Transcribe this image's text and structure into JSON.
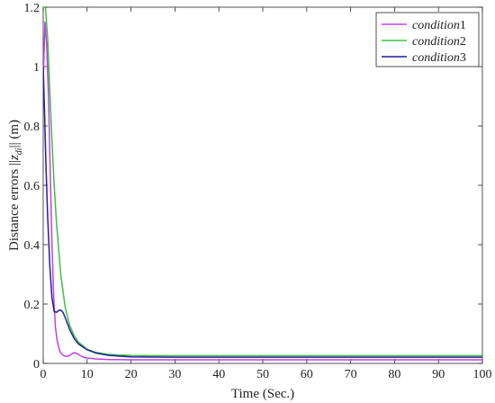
{
  "chart_data": {
    "type": "line",
    "xlabel": "Time (Sec.)",
    "ylabel": "Distance errors ‖z_di‖ (m)",
    "ylabel_parts": {
      "pre": "Distance errors ",
      "norm_open": "||",
      "var": "z",
      "sub": "di",
      "norm_close": "||",
      "post": " (m)"
    },
    "xlim": [
      0,
      100
    ],
    "ylim": [
      0,
      1.2
    ],
    "x_ticks": [
      0,
      10,
      20,
      30,
      40,
      50,
      60,
      70,
      80,
      90,
      100
    ],
    "y_ticks": [
      0,
      0.2,
      0.4,
      0.6,
      0.8,
      1,
      1.2
    ],
    "x_tick_labels": [
      "0",
      "10",
      "20",
      "30",
      "40",
      "50",
      "60",
      "70",
      "80",
      "90",
      "100"
    ],
    "y_tick_labels": [
      "0",
      "0.2",
      "0.4",
      "0.6",
      "0.8",
      "1",
      "1.2"
    ],
    "grid": false,
    "legend_position": "top-right",
    "series": [
      {
        "name": "condition1",
        "name_italic": "condition",
        "name_num": "1",
        "color": "#bf40e6",
        "x": [
          0,
          0.4,
          0.8,
          1.2,
          1.6,
          2.0,
          2.4,
          2.8,
          3.2,
          3.6,
          4.0,
          4.5,
          5.0,
          5.5,
          6.0,
          6.5,
          7.0,
          7.5,
          8.0,
          9.0,
          10,
          12,
          15,
          20,
          30,
          50,
          100
        ],
        "y": [
          0.95,
          1.15,
          1.07,
          0.9,
          0.65,
          0.4,
          0.22,
          0.12,
          0.075,
          0.05,
          0.035,
          0.028,
          0.024,
          0.024,
          0.027,
          0.032,
          0.036,
          0.035,
          0.03,
          0.022,
          0.018,
          0.015,
          0.013,
          0.012,
          0.012,
          0.012,
          0.012
        ]
      },
      {
        "name": "condition2",
        "name_italic": "condition",
        "name_num": "2",
        "color": "#3fbf3f",
        "x": [
          0,
          0.5,
          1.0,
          1.5,
          2.0,
          2.5,
          3.0,
          4.0,
          5.0,
          6.0,
          7.0,
          8.0,
          10,
          12,
          15,
          20,
          25,
          30,
          40,
          60,
          100
        ],
        "y": [
          1.2,
          1.2,
          1.1,
          0.92,
          0.75,
          0.6,
          0.48,
          0.3,
          0.19,
          0.13,
          0.095,
          0.072,
          0.048,
          0.037,
          0.03,
          0.027,
          0.026,
          0.026,
          0.026,
          0.026,
          0.026
        ]
      },
      {
        "name": "condition3",
        "name_italic": "condition",
        "name_num": "3",
        "color": "#1f1f9f",
        "x": [
          0,
          0.3,
          0.6,
          1.0,
          1.5,
          2.0,
          2.5,
          3.0,
          3.5,
          4.0,
          4.5,
          5.0,
          6.0,
          7.0,
          8.0,
          10,
          12,
          15,
          20,
          30,
          50,
          100
        ],
        "y": [
          1.0,
          0.85,
          0.68,
          0.5,
          0.33,
          0.22,
          0.175,
          0.172,
          0.178,
          0.18,
          0.172,
          0.155,
          0.115,
          0.085,
          0.066,
          0.046,
          0.035,
          0.027,
          0.022,
          0.021,
          0.021,
          0.021
        ]
      }
    ]
  }
}
